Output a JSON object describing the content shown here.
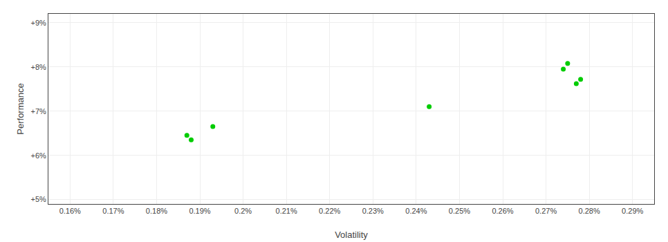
{
  "chart_data": {
    "type": "scatter",
    "xlabel": "Volatility",
    "ylabel": "Performance",
    "x": [
      0.187,
      0.188,
      0.193,
      0.243,
      0.274,
      0.275,
      0.277,
      0.278
    ],
    "values": [
      0.0645,
      0.0635,
      0.0665,
      0.071,
      0.0795,
      0.0808,
      0.0762,
      0.0772
    ],
    "color": "#00cc00",
    "xlim": [
      0.155,
      0.295
    ],
    "ylim": [
      0.049,
      0.092
    ],
    "xticks": [
      {
        "value": 0.16,
        "label": "0.16%"
      },
      {
        "value": 0.17,
        "label": "0.17%"
      },
      {
        "value": 0.18,
        "label": "0.18%"
      },
      {
        "value": 0.19,
        "label": "0.19%"
      },
      {
        "value": 0.2,
        "label": "0.2%"
      },
      {
        "value": 0.21,
        "label": "0.21%"
      },
      {
        "value": 0.22,
        "label": "0.22%"
      },
      {
        "value": 0.23,
        "label": "0.23%"
      },
      {
        "value": 0.24,
        "label": "0.24%"
      },
      {
        "value": 0.25,
        "label": "0.25%"
      },
      {
        "value": 0.26,
        "label": "0.26%"
      },
      {
        "value": 0.27,
        "label": "0.27%"
      },
      {
        "value": 0.28,
        "label": "0.28%"
      },
      {
        "value": 0.29,
        "label": "0.29%"
      }
    ],
    "yticks": [
      {
        "value": 0.05,
        "label": "+5%"
      },
      {
        "value": 0.06,
        "label": "+6%"
      },
      {
        "value": 0.07,
        "label": "+7%"
      },
      {
        "value": 0.08,
        "label": "+8%"
      },
      {
        "value": 0.09,
        "label": "+9%"
      }
    ],
    "grid": true
  }
}
